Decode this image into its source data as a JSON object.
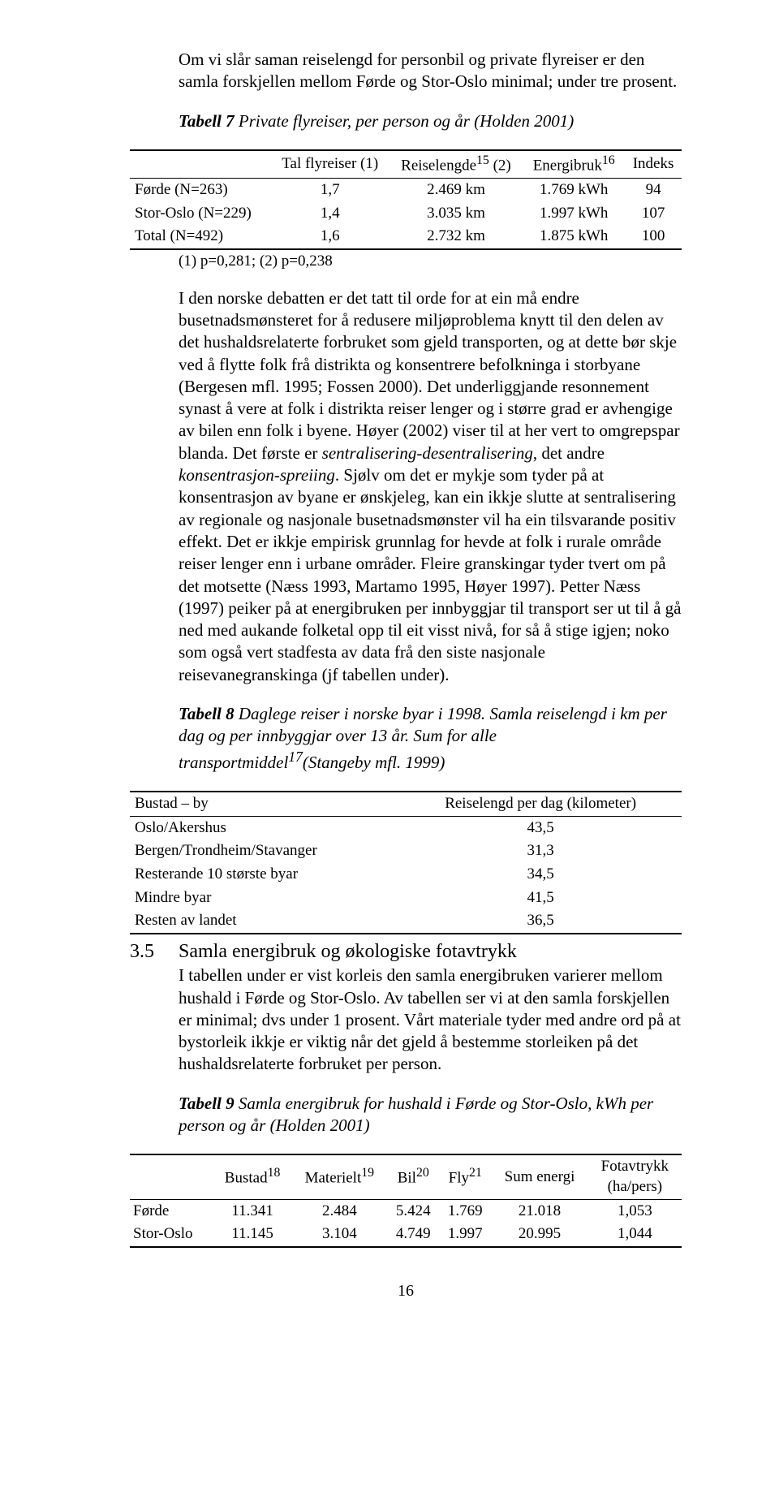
{
  "intro": "Om vi slår saman reiselengd for personbil og private flyreiser er den samla forskjellen mellom Førde og Stor-Oslo minimal; under tre prosent.",
  "table7": {
    "caption_bold": "Tabell 7",
    "caption_rest": " Private flyreiser, per person og år (Holden 2001)",
    "h1": "Tal flyreiser (1)",
    "h2": "Reiselengde",
    "h2_sup": "15",
    "h2_tail": " (2)",
    "h3": "Energibruk",
    "h3_sup": "16",
    "h4": "Indeks",
    "rows": [
      {
        "label": "Førde (N=263)",
        "c1": "1,7",
        "c2": "2.469 km",
        "c3": "1.769 kWh",
        "c4": "94"
      },
      {
        "label": "Stor-Oslo (N=229)",
        "c1": "1,4",
        "c2": "3.035 km",
        "c3": "1.997 kWh",
        "c4": "107"
      },
      {
        "label": "Total (N=492)",
        "c1": "1,6",
        "c2": "2.732 km",
        "c3": "1.875 kWh",
        "c4": "100"
      }
    ],
    "note": "(1) p=0,281; (2) p=0,238"
  },
  "body1_a": "I den norske debatten er det tatt til orde for at ein må endre busetnadsmønsteret for å redusere miljøproblema knytt til den delen av det hushaldsrelaterte forbruket som gjeld transporten, og at dette bør skje ved å flytte folk frå distrikta og konsentrere befolkninga i storbyane (Bergesen mfl. 1995; Fossen 2000). Det underliggjande resonnement synast å vere at folk i distrikta reiser lenger og i større grad er avhengige av bilen enn folk i byene. Høyer (2002) viser til at her vert to omgrepspar blanda. Det første er ",
  "body1_i1": "sentralisering-desentralisering",
  "body1_b": ", det andre ",
  "body1_i2": "konsentrasjon-spreiing",
  "body1_c": ". Sjølv om det er mykje som tyder på at konsentrasjon av byane er ønskjeleg, kan ein ikkje slutte at sentralisering av regionale og nasjonale busetnadsmønster vil ha ein tilsvarande positiv effekt. Det er ikkje empirisk grunnlag for hevde at folk i rurale område reiser lenger enn i urbane områder. Fleire granskingar tyder tvert om på det motsette (Næss 1993, Martamo 1995, Høyer 1997). Petter Næss (1997) peiker på at energibruken per innbyggjar til transport ser ut til å gå ned med aukande folketal opp til eit visst nivå, for så å stige igjen; noko som også vert stadfesta av data frå den siste nasjonale reisevanegranskinga (jf tabellen under).",
  "table8": {
    "caption_bold": "Tabell 8",
    "caption_rest_a": " Daglege reiser i norske byar i 1998. Samla reiselengd i km per dag og per innbyggjar over 13 år. Sum for alle transportmiddel",
    "caption_sup": "17",
    "caption_rest_b": "(Stangeby mfl. 1999)",
    "h1": "Bustad – by",
    "h2": "Reiselengd per dag (kilometer)",
    "rows": [
      {
        "label": "Oslo/Akershus",
        "val": "43,5"
      },
      {
        "label": "Bergen/Trondheim/Stavanger",
        "val": "31,3"
      },
      {
        "label": "Resterande 10 største byar",
        "val": "34,5"
      },
      {
        "label": "Mindre byar",
        "val": "41,5"
      },
      {
        "label": "Resten av landet",
        "val": "36,5"
      }
    ]
  },
  "section": {
    "num": "3.5",
    "title": "Samla energibruk og økologiske fotavtrykk"
  },
  "body2": "I tabellen under er vist korleis den samla energibruken varierer mellom hushald i Førde og Stor-Oslo. Av tabellen ser vi at den samla forskjellen er minimal; dvs under 1 prosent. Vårt materiale tyder med andre ord på at bystorleik ikkje er viktig når det gjeld å bestemme storleiken på det hushaldsrelaterte forbruket per person.",
  "table9": {
    "caption_bold": "Tabell 9",
    "caption_rest": " Samla energibruk for hushald i Førde og Stor-Oslo, kWh per person og år (Holden 2001)",
    "h1": "Bustad",
    "h1_sup": "18",
    "h2": "Materielt",
    "h2_sup": "19",
    "h3": "Bil",
    "h3_sup": "20",
    "h4": "Fly",
    "h4_sup": "21",
    "h5": "Sum energi",
    "h6a": "Fotavtrykk",
    "h6b": "(ha/pers)",
    "rows": [
      {
        "label": "Førde",
        "c1": "11.341",
        "c2": "2.484",
        "c3": "5.424",
        "c4": "1.769",
        "c5": "21.018",
        "c6": "1,053"
      },
      {
        "label": "Stor-Oslo",
        "c1": "11.145",
        "c2": "3.104",
        "c3": "4.749",
        "c4": "1.997",
        "c5": "20.995",
        "c6": "1,044"
      }
    ]
  },
  "pagenum": "16"
}
